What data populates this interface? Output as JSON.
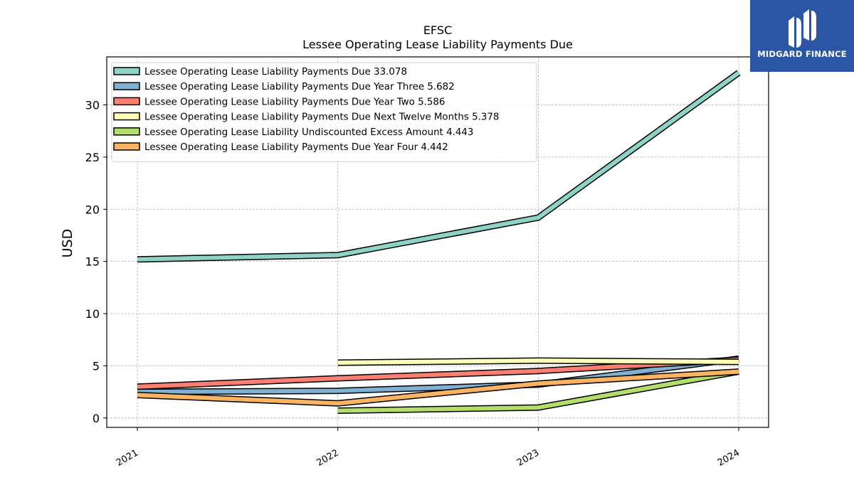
{
  "brand": {
    "logo_text": "MIDGARD FINANCE",
    "logo_bg": "#2b56a6"
  },
  "chart_data": {
    "type": "line",
    "title": "EFSC",
    "subtitle": "Lessee Operating Lease Liability Payments Due",
    "xlabel": "",
    "ylabel": "USD",
    "categories": [
      "2021",
      "2022",
      "2023",
      "2024"
    ],
    "ylim": [
      -0.9,
      34.6
    ],
    "yticks": [
      0,
      5,
      10,
      15,
      20,
      25,
      30
    ],
    "grid": true,
    "legend_position": "top-left",
    "series": [
      {
        "name": "Lessee Operating Lease Liability Payments Due",
        "legend_value": "33.078",
        "color": "#8dd3c7",
        "values": [
          15.2,
          15.6,
          19.2,
          33.078
        ]
      },
      {
        "name": "Lessee Operating Lease Liability Payments Due Year Three",
        "legend_value": "5.682",
        "color": "#80b1d3",
        "values": [
          2.5,
          2.6,
          3.2,
          5.682
        ]
      },
      {
        "name": "Lessee Operating Lease Liability Payments Due Year Two",
        "legend_value": "5.586",
        "color": "#fb8072",
        "values": [
          3.0,
          3.8,
          4.5,
          5.586
        ]
      },
      {
        "name": "Lessee Operating Lease Liability Payments Due Next Twelve Months",
        "legend_value": "5.378",
        "color": "#ffffb3",
        "values": [
          null,
          5.3,
          5.5,
          5.378
        ]
      },
      {
        "name": "Lessee Operating Lease Liability Undiscounted Excess Amount",
        "legend_value": "4.443",
        "color": "#b3de69",
        "values": [
          null,
          0.7,
          1.0,
          4.443
        ]
      },
      {
        "name": "Lessee Operating Lease Liability Payments Due Year Four",
        "legend_value": "4.442",
        "color": "#fdb462",
        "values": [
          2.2,
          1.4,
          3.3,
          4.442
        ]
      }
    ]
  }
}
